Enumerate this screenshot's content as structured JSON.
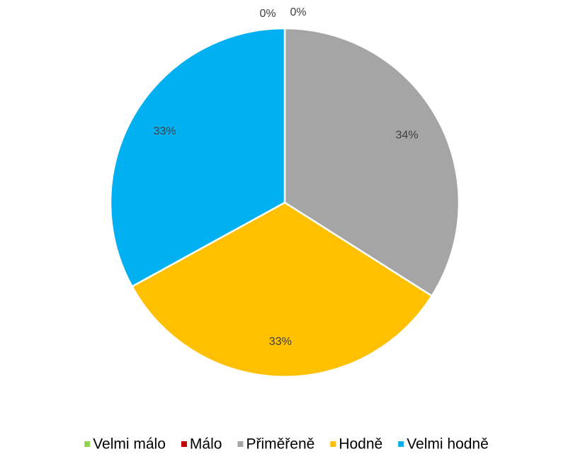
{
  "chart_data": {
    "type": "pie",
    "categories": [
      "Velmi málo",
      "Málo",
      "Přiměřeně",
      "Hodně",
      "Velmi hodně"
    ],
    "values": [
      0,
      0,
      34,
      33,
      33
    ],
    "value_labels": [
      "0%",
      "0%",
      "34%",
      "33%",
      "33%"
    ],
    "colors": [
      "#92d050",
      "#c00000",
      "#a5a5a5",
      "#ffc000",
      "#00b0f0"
    ],
    "legend": "bottom"
  }
}
